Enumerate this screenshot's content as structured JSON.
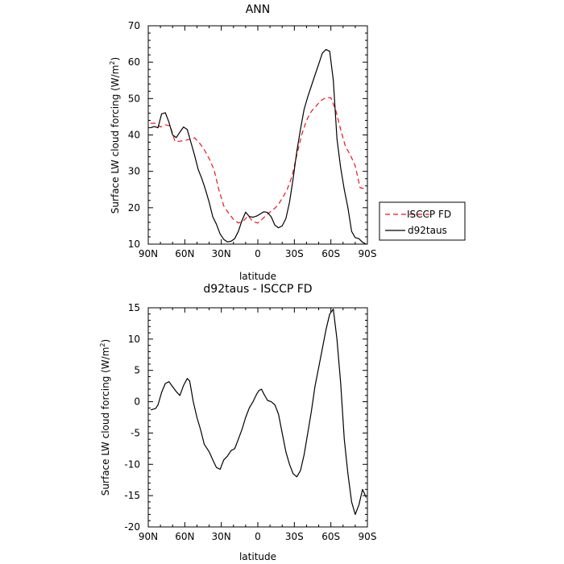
{
  "chart_data": [
    {
      "type": "line",
      "title": "ANN",
      "xlabel": "latitude",
      "ylabel_main": "Surface LW cloud forcing (W/m",
      "ylabel_sup": "2",
      "ylabel_tail": ")",
      "xlim": [
        90,
        -90
      ],
      "ylim": [
        10,
        70
      ],
      "xticks": [
        90,
        60,
        30,
        0,
        -30,
        -60,
        -90
      ],
      "xtick_labels": [
        "90N",
        "60N",
        "30N",
        "0",
        "30S",
        "60S",
        "90S"
      ],
      "yticks": [
        10,
        20,
        30,
        40,
        50,
        60,
        70
      ],
      "ytick_labels": [
        "10",
        "20",
        "30",
        "40",
        "50",
        "60",
        "70"
      ],
      "legend_position": "right",
      "series": [
        {
          "name": "ISCCP FD",
          "color": "#e8141c",
          "dash": "dashed",
          "x": [
            88,
            84,
            80,
            76,
            72,
            68,
            64,
            60,
            56,
            52,
            48,
            44,
            40,
            36,
            32,
            28,
            24,
            20,
            16,
            12,
            8,
            4,
            0,
            -4,
            -8,
            -12,
            -16,
            -20,
            -24,
            -28,
            -32,
            -36,
            -40,
            -44,
            -48,
            -52,
            -56,
            -60,
            -64,
            -68,
            -72,
            -76,
            -80,
            -84,
            -88
          ],
          "y": [
            43.2,
            43.2,
            42.2,
            42.8,
            42.5,
            38.2,
            38.3,
            38.5,
            38.8,
            39.2,
            37.8,
            36.0,
            33.5,
            30.5,
            25.0,
            20.5,
            18.5,
            16.8,
            15.8,
            16.3,
            17.8,
            16.2,
            15.8,
            17.0,
            18.3,
            19.3,
            20.5,
            22.5,
            25.0,
            28.5,
            34.5,
            40.0,
            44.0,
            46.5,
            48.0,
            49.5,
            50.3,
            50.2,
            46.8,
            41.5,
            36.8,
            34.5,
            31.5,
            25.5,
            25.2
          ]
        },
        {
          "name": "d92taus",
          "color": "#000000",
          "dash": "solid",
          "x": [
            88,
            85,
            82,
            79,
            76,
            73,
            70,
            67,
            64,
            61,
            58,
            55,
            52,
            49,
            46,
            43,
            40,
            37,
            34,
            31,
            28,
            25,
            22,
            19,
            16,
            13,
            10,
            7,
            4,
            1,
            -2,
            -5,
            -8,
            -11,
            -14,
            -17,
            -20,
            -23,
            -26,
            -29,
            -32,
            -35,
            -38,
            -41,
            -44,
            -47,
            -50,
            -53,
            -56,
            -59,
            -62,
            -65,
            -68,
            -71,
            -74,
            -77,
            -80,
            -83,
            -86,
            -89
          ],
          "y": [
            42.0,
            42.3,
            42.0,
            45.8,
            46.1,
            43.5,
            40.0,
            39.3,
            40.8,
            42.2,
            41.5,
            38.0,
            34.5,
            30.5,
            28.0,
            25.0,
            21.5,
            17.5,
            15.5,
            12.8,
            11.3,
            10.6,
            10.8,
            11.5,
            13.5,
            16.5,
            18.8,
            17.6,
            17.4,
            17.7,
            18.3,
            18.9,
            18.7,
            17.5,
            15.2,
            14.5,
            15.0,
            17.0,
            21.5,
            28.0,
            35.5,
            41.5,
            47.0,
            50.5,
            53.5,
            56.5,
            59.5,
            62.5,
            63.5,
            63.0,
            55.0,
            39.0,
            31.0,
            25.0,
            20.0,
            13.5,
            11.8,
            11.5,
            10.5,
            10.0
          ]
        }
      ]
    },
    {
      "type": "line",
      "title": "d92taus - ISCCP FD",
      "xlabel": "latitude",
      "ylabel_main": "Surface LW cloud forcing (W/m",
      "ylabel_sup": "2",
      "ylabel_tail": ")",
      "xlim": [
        90,
        -90
      ],
      "ylim": [
        -20,
        15
      ],
      "xticks": [
        90,
        60,
        30,
        0,
        -30,
        -60,
        -90
      ],
      "xtick_labels": [
        "90N",
        "60N",
        "30N",
        "0",
        "30S",
        "60S",
        "90S"
      ],
      "yticks": [
        -20,
        -15,
        -10,
        -5,
        0,
        5,
        10,
        15
      ],
      "ytick_labels": [
        "-20",
        "-15",
        "-10",
        "-5",
        "0",
        "5",
        "10",
        "15"
      ],
      "series": [
        {
          "color": "#000000",
          "dash": "solid",
          "x": [
            88,
            84,
            82,
            79,
            76,
            73,
            70,
            67,
            64,
            61,
            58,
            56,
            53,
            50,
            47,
            44,
            40,
            37,
            34,
            31,
            28,
            25,
            22,
            19,
            16,
            13,
            10,
            7,
            4,
            1,
            -1,
            -3,
            -5,
            -8,
            -11,
            -14,
            -17,
            -20,
            -23,
            -26,
            -29,
            -32,
            -35,
            -38,
            -41,
            -44,
            -47,
            -50,
            -53,
            -56,
            -59,
            -62,
            -65,
            -68,
            -71,
            -74,
            -77,
            -80,
            -83,
            -86,
            -89
          ],
          "y": [
            -1.3,
            -1.1,
            -0.5,
            1.5,
            2.9,
            3.2,
            2.4,
            1.6,
            1.0,
            2.6,
            3.7,
            3.3,
            0.0,
            -2.5,
            -4.5,
            -6.8,
            -8.0,
            -9.3,
            -10.5,
            -10.8,
            -9.3,
            -8.7,
            -7.8,
            -7.5,
            -6.0,
            -4.4,
            -2.5,
            -1.0,
            0.0,
            1.2,
            1.8,
            2.0,
            1.2,
            0.2,
            0.0,
            -0.5,
            -2.0,
            -5.0,
            -8.0,
            -10.0,
            -11.5,
            -12.0,
            -11.0,
            -8.5,
            -5.0,
            -1.5,
            2.5,
            5.5,
            8.5,
            11.5,
            14.0,
            14.8,
            10.0,
            3.0,
            -6.0,
            -11.5,
            -16.0,
            -18.0,
            -16.5,
            -14.0,
            -15.3
          ]
        }
      ]
    }
  ]
}
